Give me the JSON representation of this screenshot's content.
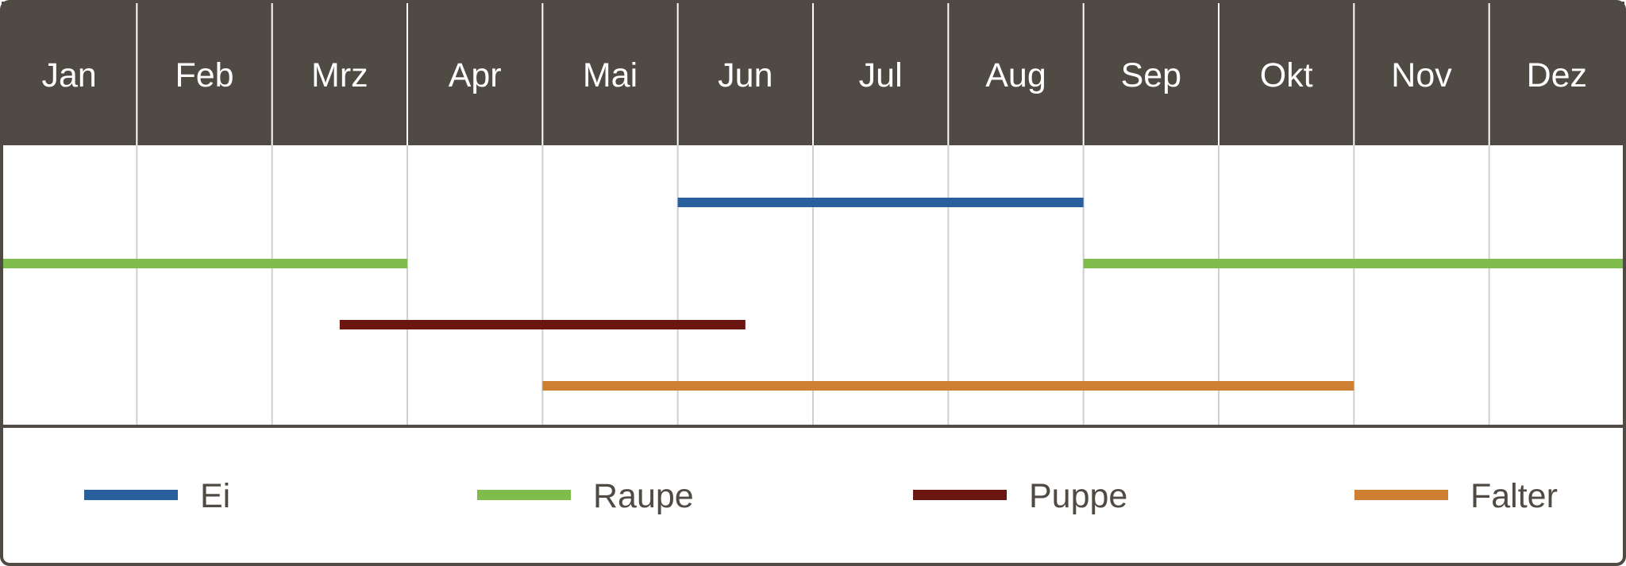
{
  "chart_data": {
    "type": "gantt",
    "title": "",
    "categories": [
      "Jan",
      "Feb",
      "Mrz",
      "Apr",
      "Mai",
      "Jun",
      "Jul",
      "Aug",
      "Sep",
      "Okt",
      "Nov",
      "Dez"
    ],
    "x_unit": "month",
    "xlim": [
      0,
      12
    ],
    "grid": true,
    "legend_position": "bottom",
    "series": [
      {
        "name": "Ei",
        "color": "#2a5f9e",
        "segments": [
          {
            "start": 5.0,
            "end": 8.0
          }
        ]
      },
      {
        "name": "Raupe",
        "color": "#7fbc4b",
        "segments": [
          {
            "start": 0.0,
            "end": 3.0
          },
          {
            "start": 8.0,
            "end": 12.0
          }
        ]
      },
      {
        "name": "Puppe",
        "color": "#6b1610",
        "segments": [
          {
            "start": 2.5,
            "end": 5.5
          }
        ]
      },
      {
        "name": "Falter",
        "color": "#cf7f31",
        "segments": [
          {
            "start": 4.0,
            "end": 10.0
          }
        ]
      }
    ]
  },
  "colors": {
    "header_background": "#4f4a43",
    "frame": "#4f4a43",
    "month_label": "#ffffff",
    "header_divider": "#ffffff",
    "grid_line": "#cfcfcf",
    "legend_text": "#4f4a43",
    "background": "#ffffff"
  }
}
